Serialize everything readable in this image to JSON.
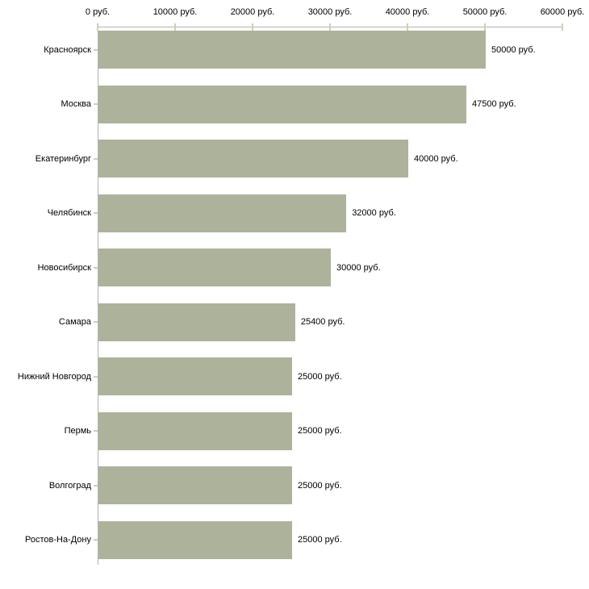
{
  "chart_data": {
    "type": "bar",
    "orientation": "horizontal",
    "title": "",
    "xlabel": "",
    "ylabel": "",
    "categories": [
      "Красноярск",
      "Москва",
      "Екатеринбург",
      "Челябинск",
      "Новосибирск",
      "Самара",
      "Нижний Новгород",
      "Пермь",
      "Волгоград",
      "Ростов-На-Дону"
    ],
    "values": [
      50000,
      47500,
      40000,
      32000,
      30000,
      25400,
      25000,
      25000,
      25000,
      25000
    ],
    "value_labels": [
      "50000 руб.",
      "47500 руб.",
      "40000 руб.",
      "32000 руб.",
      "30000 руб.",
      "25400 руб.",
      "25000 руб.",
      "25000 руб.",
      "25000 руб.",
      "25000 руб."
    ],
    "xlim": [
      0,
      60000
    ],
    "x_ticks": [
      0,
      10000,
      20000,
      30000,
      40000,
      50000,
      60000
    ],
    "x_tick_labels": [
      "0 руб.",
      "10000 руб.",
      "20000 руб.",
      "30000 руб.",
      "40000 руб.",
      "50000 руб.",
      "60000 руб."
    ],
    "grid": false,
    "legend": null
  },
  "colors": {
    "bar_fill": "#acb39a",
    "axis_line": "#b3b3b3",
    "tick_mark": "#cdd1b2",
    "text": "#000000",
    "background": "#ffffff"
  }
}
